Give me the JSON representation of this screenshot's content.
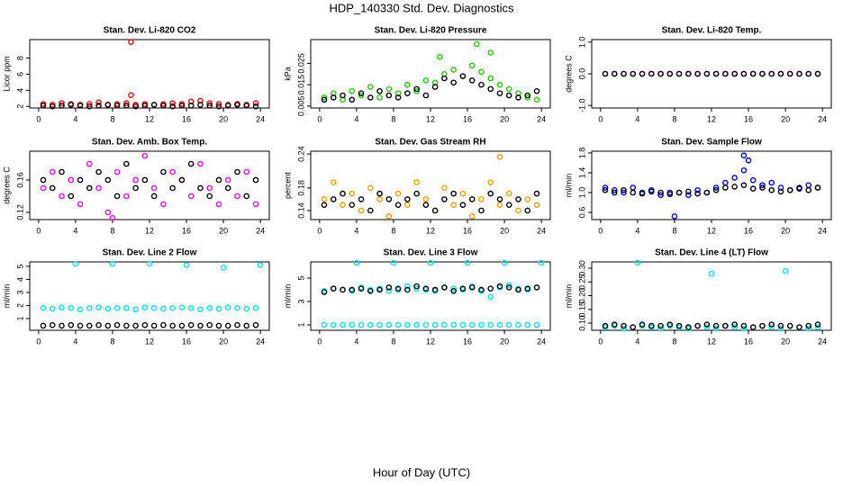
{
  "title": "HDP_140330  Std. Dev. Diagnostics",
  "xlabel": "Hour of Day (UTC)",
  "chart_data": [
    {
      "type": "scatter",
      "title": "Stan. Dev. Li-820 CO2",
      "ylabel": "Licor ppm",
      "xlim": [
        -0.96,
        24.96
      ],
      "xticks": [
        0,
        4,
        8,
        12,
        16,
        20,
        24
      ],
      "ylim": [
        1.8,
        10.3
      ],
      "yticks": [
        2,
        4,
        6,
        8
      ],
      "x": [
        0.5,
        1.5,
        2.5,
        3.5,
        4.5,
        5.5,
        6.5,
        7.5,
        8.5,
        9.5,
        10.5,
        11.5,
        12.5,
        13.5,
        14.5,
        15.5,
        16.5,
        17.5,
        18.5,
        19.5,
        20.5,
        21.5,
        22.5,
        23.5
      ],
      "series": [
        {
          "color": "#ff0000",
          "values": [
            2.3,
            2.2,
            2.4,
            2.3,
            2.2,
            2.3,
            2.5,
            2.2,
            2.3,
            2.4,
            2.2,
            2.3,
            2.2,
            2.3,
            2.4,
            2.3,
            2.6,
            2.7,
            2.4,
            2.3,
            2.2,
            2.3,
            2.2,
            2.4
          ]
        },
        {
          "color": "#000000",
          "values": [
            2.1,
            2.0,
            2.1,
            2.2,
            2.1,
            2.0,
            2.1,
            2.2,
            2.1,
            2.1,
            2.0,
            2.1,
            2.2,
            2.1,
            2.0,
            2.1,
            2.1,
            2.2,
            2.1,
            2.0,
            2.1,
            2.2,
            2.1,
            2.0
          ]
        },
        {
          "color": "#ff0000",
          "x": [
            10,
            10
          ],
          "values": [
            10.0,
            3.4
          ]
        }
      ]
    },
    {
      "type": "scatter",
      "title": "Stan. Dev. Li-820 Pressure",
      "ylabel": "kPa",
      "xlim": [
        -0.96,
        24.96
      ],
      "xticks": [
        0,
        4,
        8,
        12,
        16,
        20,
        24
      ],
      "ylim": [
        0.0041,
        0.0361
      ],
      "yticks": [
        0.005,
        0.015,
        0.025
      ],
      "x": [
        0.5,
        1.5,
        2.5,
        3.5,
        4.5,
        5.5,
        6.5,
        7.5,
        8.5,
        9.5,
        10.5,
        11.5,
        12.5,
        13.5,
        14.5,
        15.5,
        16.5,
        17.5,
        18.5,
        19.5,
        20.5,
        21.5,
        22.5,
        23.5
      ],
      "series": [
        {
          "color": "#22cc00",
          "values": [
            0.009,
            0.011,
            0.008,
            0.012,
            0.01,
            0.014,
            0.009,
            0.013,
            0.011,
            0.015,
            0.012,
            0.017,
            0.016,
            0.02,
            0.022,
            0.019,
            0.024,
            0.021,
            0.018,
            0.015,
            0.013,
            0.011,
            0.009,
            0.008
          ]
        },
        {
          "color": "#000000",
          "values": [
            0.008,
            0.009,
            0.01,
            0.008,
            0.011,
            0.009,
            0.012,
            0.01,
            0.009,
            0.011,
            0.013,
            0.01,
            0.014,
            0.018,
            0.016,
            0.019,
            0.017,
            0.015,
            0.013,
            0.011,
            0.01,
            0.009,
            0.01,
            0.012
          ]
        },
        {
          "color": "#22cc00",
          "x": [
            13,
            17,
            18.5
          ],
          "values": [
            0.028,
            0.034,
            0.03
          ]
        }
      ]
    },
    {
      "type": "scatter",
      "title": "Stan. Dev. Li-820 Temp.",
      "ylabel": "degrees C",
      "xlim": [
        -0.96,
        24.96
      ],
      "xticks": [
        0,
        4,
        8,
        12,
        16,
        20,
        24
      ],
      "ylim": [
        -1.08,
        1.08
      ],
      "yticks": [
        {
          "value": -1,
          "label": "-1.0"
        },
        {
          "value": 0,
          "label": "0.0"
        },
        {
          "value": 1,
          "label": "1.0"
        }
      ],
      "x": [
        0.5,
        1.5,
        2.5,
        3.5,
        4.5,
        5.5,
        6.5,
        7.5,
        8.5,
        9.5,
        10.5,
        11.5,
        12.5,
        13.5,
        14.5,
        15.5,
        16.5,
        17.5,
        18.5,
        19.5,
        20.5,
        21.5,
        22.5,
        23.5
      ],
      "series": [
        {
          "color": "#ff00ff",
          "values": [
            0,
            0,
            0,
            0,
            0,
            0,
            0,
            0,
            0,
            0,
            0,
            0,
            0,
            0,
            0,
            0,
            0,
            0,
            0,
            0,
            0,
            0,
            0,
            0
          ]
        },
        {
          "color": "#000000",
          "values": [
            0,
            0,
            0,
            0,
            0,
            0,
            0,
            0,
            0,
            0,
            0,
            0,
            0,
            0,
            0,
            0,
            0,
            0,
            0,
            0,
            0,
            0,
            0,
            0
          ]
        }
      ]
    },
    {
      "type": "scatter",
      "title": "Stan. Dev. Amb. Box Temp.",
      "ylabel": "degrees C",
      "xlim": [
        -0.96,
        24.96
      ],
      "xticks": [
        0,
        4,
        8,
        12,
        16,
        20,
        24
      ],
      "ylim": [
        0.111,
        0.1956
      ],
      "yticks": [
        0.12,
        0.16
      ],
      "x": [
        0.5,
        1.5,
        2.5,
        3.5,
        4.5,
        5.5,
        6.5,
        7.5,
        8.5,
        9.5,
        10.5,
        11.5,
        12.5,
        13.5,
        14.5,
        15.5,
        16.5,
        17.5,
        18.5,
        19.5,
        20.5,
        21.5,
        22.5,
        23.5
      ],
      "series": [
        {
          "color": "#ff00ff",
          "values": [
            0.15,
            0.17,
            0.14,
            0.16,
            0.13,
            0.18,
            0.15,
            0.12,
            0.17,
            0.14,
            0.16,
            0.19,
            0.15,
            0.13,
            0.17,
            0.16,
            0.14,
            0.18,
            0.15,
            0.13,
            0.16,
            0.14,
            0.17,
            0.13
          ]
        },
        {
          "color": "#000000",
          "values": [
            0.16,
            0.15,
            0.17,
            0.14,
            0.16,
            0.15,
            0.17,
            0.16,
            0.14,
            0.18,
            0.15,
            0.16,
            0.14,
            0.17,
            0.15,
            0.16,
            0.18,
            0.15,
            0.14,
            0.16,
            0.15,
            0.17,
            0.14,
            0.16
          ]
        },
        {
          "color": "#ff00ff",
          "x": [
            8
          ],
          "values": [
            0.113
          ]
        }
      ]
    },
    {
      "type": "scatter",
      "title": "Stan. Dev. Gas Stream RH",
      "ylabel": "percent",
      "xlim": [
        -0.96,
        24.96
      ],
      "xticks": [
        0,
        4,
        8,
        12,
        16,
        20,
        24
      ],
      "ylim": [
        0.124,
        0.245
      ],
      "yticks": [
        0.14,
        0.18,
        0.24
      ],
      "x": [
        0.5,
        1.5,
        2.5,
        3.5,
        4.5,
        5.5,
        6.5,
        7.5,
        8.5,
        9.5,
        10.5,
        11.5,
        12.5,
        13.5,
        14.5,
        15.5,
        16.5,
        17.5,
        18.5,
        19.5,
        20.5,
        21.5,
        22.5,
        23.5
      ],
      "series": [
        {
          "color": "#f0a000",
          "values": [
            0.16,
            0.19,
            0.15,
            0.17,
            0.14,
            0.18,
            0.16,
            0.13,
            0.17,
            0.15,
            0.19,
            0.16,
            0.14,
            0.18,
            0.15,
            0.17,
            0.13,
            0.16,
            0.19,
            0.15,
            0.17,
            0.14,
            0.16,
            0.15
          ]
        },
        {
          "color": "#000000",
          "values": [
            0.15,
            0.16,
            0.17,
            0.15,
            0.16,
            0.14,
            0.17,
            0.16,
            0.15,
            0.16,
            0.17,
            0.15,
            0.14,
            0.16,
            0.17,
            0.15,
            0.16,
            0.14,
            0.17,
            0.16,
            0.15,
            0.16,
            0.14,
            0.17
          ]
        },
        {
          "color": "#f0a000",
          "x": [
            19.5
          ],
          "values": [
            0.235
          ]
        }
      ]
    },
    {
      "type": "scatter",
      "title": "Stan. Dev. Sample Flow",
      "ylabel": "ml/min",
      "xlim": [
        -0.96,
        24.96
      ],
      "xticks": [
        0,
        4,
        8,
        12,
        16,
        20,
        24
      ],
      "ylim": [
        0.455,
        1.836
      ],
      "yticks": [
        0.6,
        {
          "value": 1,
          "label": "1.0"
        },
        1.4,
        1.8
      ],
      "x": [
        0.5,
        1.5,
        2.5,
        3.5,
        4.5,
        5.5,
        6.5,
        7.5,
        8.5,
        9.5,
        10.5,
        11.5,
        12.5,
        13.5,
        14.5,
        15.5,
        16.5,
        17.5,
        18.5,
        19.5,
        20.5,
        21.5,
        22.5,
        23.5
      ],
      "series": [
        {
          "color": "#0000ff",
          "values": [
            1.1,
            1.05,
            1.0,
            1.1,
            1.0,
            1.05,
            0.95,
            1.0,
            1.0,
            0.95,
            1.05,
            1.0,
            1.1,
            1.2,
            1.3,
            1.45,
            1.25,
            1.15,
            1.2,
            1.1,
            1.05,
            1.1,
            1.15,
            1.1
          ]
        },
        {
          "color": "#000000",
          "values": [
            1.05,
            1.0,
            1.05,
            1.0,
            0.98,
            1.02,
            1.0,
            0.97,
            1.0,
            1.02,
            0.98,
            1.0,
            1.05,
            1.1,
            1.12,
            1.15,
            1.08,
            1.1,
            1.05,
            1.02,
            1.05,
            1.08,
            1.05,
            1.1
          ]
        },
        {
          "color": "#0000ff",
          "x": [
            8,
            15.5,
            16
          ],
          "values": [
            0.52,
            1.75,
            1.65
          ]
        }
      ]
    },
    {
      "type": "scatter",
      "title": "Stan. Dev. Line 2 Flow",
      "ylabel": "ml/min",
      "xlim": [
        -0.96,
        24.96
      ],
      "xticks": [
        0,
        4,
        8,
        12,
        16,
        20,
        24
      ],
      "ylim": [
        0.1,
        5.34
      ],
      "yticks": [
        1,
        2,
        3,
        4,
        5
      ],
      "x": [
        0.5,
        1.5,
        2.5,
        3.5,
        4.5,
        5.5,
        6.5,
        7.5,
        8.5,
        9.5,
        10.5,
        11.5,
        12.5,
        13.5,
        14.5,
        15.5,
        16.5,
        17.5,
        18.5,
        19.5,
        20.5,
        21.5,
        22.5,
        23.5
      ],
      "series": [
        {
          "color": "#00e5ee",
          "values": [
            1.8,
            1.75,
            1.85,
            1.8,
            1.7,
            1.8,
            1.85,
            1.75,
            1.8,
            1.8,
            1.7,
            1.85,
            1.8,
            1.75,
            1.8,
            1.85,
            1.8,
            1.7,
            1.8,
            1.75,
            1.85,
            1.8,
            1.75,
            1.8
          ]
        },
        {
          "color": "#000000",
          "values": [
            0.45,
            0.5,
            0.45,
            0.5,
            0.45,
            0.45,
            0.5,
            0.45,
            0.5,
            0.45,
            0.45,
            0.5,
            0.45,
            0.5,
            0.45,
            0.45,
            0.5,
            0.45,
            0.5,
            0.45,
            0.45,
            0.5,
            0.45,
            0.5
          ]
        },
        {
          "color": "#00e5ee",
          "x": [
            4,
            8,
            12,
            16,
            20,
            24
          ],
          "values": [
            5.2,
            5.2,
            5.2,
            5.1,
            4.9,
            5.1
          ]
        }
      ]
    },
    {
      "type": "scatter",
      "title": "Stan. Dev. Line 3 Flow",
      "ylabel": "ml/min",
      "xlim": [
        -0.96,
        24.96
      ],
      "xticks": [
        0,
        4,
        8,
        12,
        16,
        20,
        24
      ],
      "ylim": [
        0.54,
        6.38
      ],
      "yticks": [
        1,
        3,
        5
      ],
      "x": [
        0.5,
        1.5,
        2.5,
        3.5,
        4.5,
        5.5,
        6.5,
        7.5,
        8.5,
        9.5,
        10.5,
        11.5,
        12.5,
        13.5,
        14.5,
        15.5,
        16.5,
        17.5,
        18.5,
        19.5,
        20.5,
        21.5,
        22.5,
        23.5
      ],
      "series": [
        {
          "color": "#00e5ee",
          "values": [
            3.9,
            4.1,
            4.0,
            3.9,
            4.2,
            4.0,
            4.1,
            3.9,
            4.0,
            4.3,
            4.1,
            4.0,
            3.9,
            4.2,
            4.1,
            4.0,
            4.3,
            3.9,
            3.4,
            4.2,
            4.4,
            4.1,
            4.0,
            4.2
          ]
        },
        {
          "color": "#00e5ee",
          "values": [
            1.0,
            1.0,
            1.0,
            1.0,
            1.0,
            1.0,
            1.0,
            1.0,
            1.0,
            1.0,
            1.0,
            1.0,
            1.0,
            1.0,
            1.0,
            1.0,
            1.0,
            1.0,
            1.0,
            1.0,
            1.0,
            1.0,
            1.0,
            1.0
          ]
        },
        {
          "color": "#000000",
          "values": [
            3.8,
            4.1,
            4.0,
            4.0,
            4.1,
            3.9,
            4.0,
            4.2,
            4.1,
            4.0,
            4.3,
            4.1,
            4.0,
            4.2,
            3.9,
            4.1,
            4.2,
            4.0,
            4.1,
            4.3,
            4.2,
            4.0,
            4.1,
            4.2
          ]
        },
        {
          "color": "#00e5ee",
          "x": [
            4,
            8,
            12,
            16,
            20,
            24
          ],
          "values": [
            6.3,
            6.3,
            6.3,
            6.3,
            6.3,
            6.3
          ]
        }
      ]
    },
    {
      "type": "scatter",
      "title": "Stan. Dev. Line 4 (LT) Flow",
      "ylabel": "ml/min",
      "xlim": [
        -0.96,
        24.96
      ],
      "xticks": [
        0,
        4,
        8,
        12,
        16,
        20,
        24
      ],
      "ylim": [
        0.0738,
        0.323
      ],
      "yticks": [
        {
          "value": 0.1,
          "label": "0.10"
        },
        0.15,
        {
          "value": 0.2,
          "label": "0.20"
        },
        0.25,
        {
          "value": 0.3,
          "label": "0.30"
        }
      ],
      "x": [
        0.5,
        1.5,
        2.5,
        3.5,
        4.5,
        5.5,
        6.5,
        7.5,
        8.5,
        9.5,
        10.5,
        11.5,
        12.5,
        13.5,
        14.5,
        15.5,
        16.5,
        17.5,
        18.5,
        19.5,
        20.5,
        21.5,
        22.5,
        23.5
      ],
      "series": [
        {
          "color": "#00e5ee",
          "values": [
            0.085,
            0.09,
            0.08,
            0.085,
            0.09,
            0.085,
            0.08,
            0.09,
            0.085,
            0.08,
            0.09,
            0.085,
            0.08,
            0.09,
            0.085,
            0.08,
            0.085,
            0.09,
            0.085,
            0.08,
            0.09,
            0.085,
            0.08,
            0.085
          ]
        },
        {
          "color": "#000000",
          "values": [
            0.09,
            0.095,
            0.09,
            0.085,
            0.095,
            0.09,
            0.09,
            0.095,
            0.09,
            0.085,
            0.09,
            0.095,
            0.09,
            0.09,
            0.095,
            0.09,
            0.085,
            0.09,
            0.095,
            0.09,
            0.09,
            0.085,
            0.09,
            0.095
          ]
        },
        {
          "color": "#00e5ee",
          "x": [
            4,
            12,
            20
          ],
          "values": [
            0.32,
            0.28,
            0.29
          ]
        }
      ]
    }
  ]
}
